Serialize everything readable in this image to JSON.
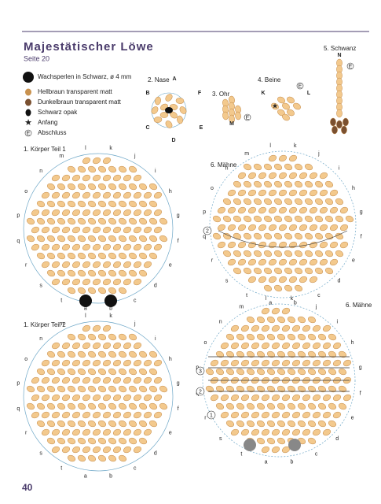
{
  "header": {
    "title": "Majestätischer Löwe",
    "subtitle": "Seite 20"
  },
  "legend": {
    "items": [
      {
        "label": "Wachsperlen in Schwarz, ø 4 mm"
      },
      {
        "label": "Hellbraun transparent matt"
      },
      {
        "label": "Dunkelbraun transparent matt"
      },
      {
        "label": "Schwarz opak"
      },
      {
        "label": "Anfang"
      },
      {
        "label": "Abschluss",
        "symbol": "E"
      }
    ]
  },
  "small_diagrams": [
    {
      "title": "2. Nase",
      "letters": [
        "A",
        "B",
        "F",
        "C",
        "D",
        "E"
      ]
    },
    {
      "title": "3. Ohr",
      "letters": [
        "M"
      ]
    },
    {
      "title": "4. Beine",
      "letters": [
        "K",
        "L"
      ]
    },
    {
      "title": "5. Schwanz",
      "letters": [
        "N"
      ]
    }
  ],
  "diagrams": [
    {
      "title": "1. Körper Teil 1",
      "letters": [
        "a",
        "b",
        "c",
        "d",
        "e",
        "f",
        "g",
        "h",
        "i",
        "j",
        "k",
        "l",
        "m",
        "n",
        "o",
        "p",
        "q",
        "r",
        "s",
        "t"
      ],
      "markers": []
    },
    {
      "title": "6. Mähne",
      "letters": [
        "a",
        "b",
        "c",
        "d",
        "e",
        "f",
        "g",
        "h",
        "i",
        "j",
        "k",
        "l",
        "m",
        "n",
        "o",
        "p",
        "q",
        "r",
        "s",
        "t"
      ],
      "markers": [
        "2"
      ]
    },
    {
      "title": "1. Körper Teil 2",
      "letters": [
        "a",
        "b",
        "c",
        "d",
        "e",
        "f",
        "g",
        "h",
        "i",
        "j",
        "k",
        "l",
        "m",
        "n",
        "o",
        "p",
        "q",
        "r",
        "s",
        "t"
      ],
      "markers": []
    },
    {
      "title": "6. Mähne",
      "letters": [
        "a",
        "b",
        "c",
        "d",
        "e",
        "f",
        "g",
        "h",
        "i",
        "j",
        "k",
        "l",
        "m",
        "n",
        "o",
        "p",
        "q",
        "r",
        "s",
        "t"
      ],
      "markers": [
        "1",
        "2",
        "3"
      ]
    }
  ],
  "page_number": "40"
}
